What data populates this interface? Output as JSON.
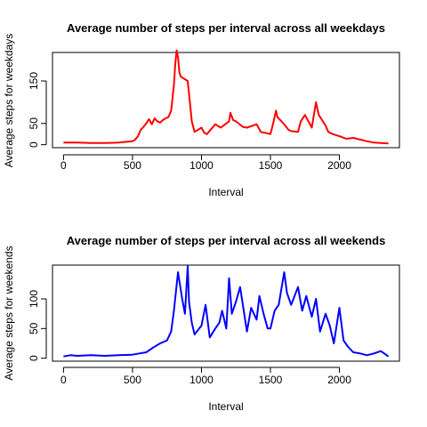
{
  "chart_data": [
    {
      "type": "line",
      "title": "Average number of steps per interval across all weekdays",
      "xlabel": "Interval",
      "ylabel": "Average steps for weekdays",
      "xlim": [
        -80,
        2435
      ],
      "ylim": [
        -7,
        217
      ],
      "xticks": [
        0,
        500,
        1000,
        1500,
        2000
      ],
      "yticks": [
        0,
        50,
        150
      ],
      "grid": false,
      "legend": "none",
      "series": [
        {
          "color": "#ff0000",
          "x": [
            0,
            100,
            200,
            300,
            400,
            500,
            520,
            540,
            560,
            580,
            600,
            620,
            640,
            660,
            680,
            700,
            720,
            740,
            760,
            780,
            800,
            810,
            820,
            830,
            840,
            850,
            900,
            910,
            930,
            950,
            1000,
            1020,
            1040,
            1100,
            1140,
            1200,
            1210,
            1230,
            1250,
            1300,
            1330,
            1400,
            1430,
            1500,
            1520,
            1540,
            1550,
            1600,
            1630,
            1650,
            1700,
            1720,
            1750,
            1800,
            1830,
            1850,
            1900,
            1920,
            1950,
            2000,
            2050,
            2100,
            2150,
            2200,
            2250,
            2300,
            2355
          ],
          "y": [
            5,
            5,
            4,
            4,
            5,
            8,
            12,
            20,
            35,
            42,
            50,
            60,
            48,
            62,
            55,
            52,
            58,
            62,
            65,
            80,
            140,
            190,
            222,
            206,
            170,
            160,
            150,
            120,
            55,
            30,
            40,
            28,
            25,
            48,
            40,
            55,
            75,
            58,
            55,
            42,
            40,
            48,
            30,
            25,
            50,
            80,
            65,
            48,
            35,
            32,
            30,
            55,
            70,
            40,
            100,
            70,
            45,
            30,
            25,
            20,
            14,
            16,
            12,
            8,
            5,
            4,
            3
          ]
        }
      ]
    },
    {
      "type": "line",
      "title": "Average number of steps per interval across all weekends",
      "xlabel": "Interval",
      "ylabel": "Average steps for weekends",
      "xlim": [
        -80,
        2435
      ],
      "ylim": [
        -5,
        157
      ],
      "xticks": [
        0,
        500,
        1000,
        1500,
        2000
      ],
      "yticks": [
        0,
        50,
        100
      ],
      "grid": false,
      "legend": "none",
      "series": [
        {
          "color": "#0000ff",
          "x": [
            0,
            50,
            100,
            200,
            300,
            400,
            500,
            550,
            600,
            650,
            700,
            750,
            780,
            800,
            830,
            860,
            880,
            900,
            910,
            930,
            950,
            1000,
            1030,
            1060,
            1100,
            1130,
            1150,
            1180,
            1200,
            1220,
            1250,
            1280,
            1300,
            1330,
            1360,
            1400,
            1420,
            1450,
            1480,
            1500,
            1530,
            1560,
            1600,
            1620,
            1650,
            1700,
            1730,
            1760,
            1800,
            1830,
            1860,
            1900,
            1930,
            1960,
            2000,
            2030,
            2060,
            2100,
            2150,
            2200,
            2250,
            2300,
            2355
          ],
          "y": [
            3,
            5,
            4,
            5,
            4,
            5,
            6,
            8,
            10,
            18,
            25,
            30,
            45,
            80,
            145,
            100,
            75,
            155,
            95,
            60,
            40,
            55,
            90,
            35,
            50,
            60,
            80,
            50,
            135,
            75,
            95,
            120,
            90,
            45,
            85,
            65,
            105,
            75,
            50,
            50,
            80,
            90,
            145,
            110,
            90,
            120,
            80,
            105,
            70,
            100,
            45,
            75,
            55,
            25,
            85,
            30,
            20,
            10,
            8,
            5,
            8,
            12,
            3
          ]
        }
      ]
    }
  ]
}
